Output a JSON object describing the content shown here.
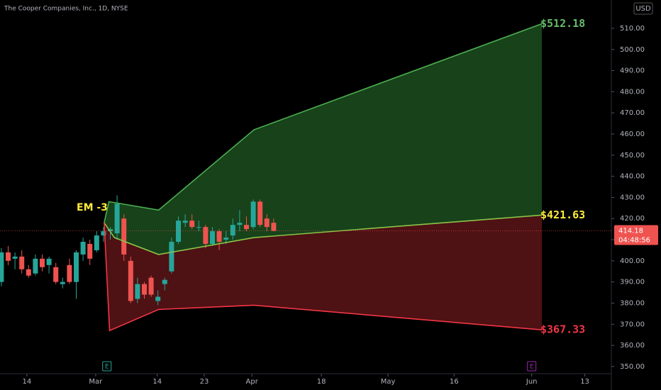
{
  "chart_data": {
    "type": "candlestick",
    "title": "The Cooper Companies, Inc., 1D, NYSE",
    "currency": "USD",
    "xlim": [
      -0.2,
      89.6
    ],
    "ylim": [
      346.6,
      523.4
    ],
    "xticks": [
      {
        "value": 3.75,
        "label": "14"
      },
      {
        "value": 13.85,
        "label": "Mar"
      },
      {
        "value": 22.9,
        "label": "14"
      },
      {
        "value": 29.8,
        "label": "23"
      },
      {
        "value": 36.8,
        "label": "Apr"
      },
      {
        "value": 47,
        "label": "18"
      },
      {
        "value": 56.8,
        "label": "May"
      },
      {
        "value": 66.5,
        "label": "16"
      },
      {
        "value": 77.9,
        "label": "Jun"
      },
      {
        "value": 85.7,
        "label": "13"
      }
    ],
    "yticks": [
      {
        "value": 350,
        "label": "350.00"
      },
      {
        "value": 360,
        "label": "360.00"
      },
      {
        "value": 370,
        "label": "370.00"
      },
      {
        "value": 380,
        "label": "380.00"
      },
      {
        "value": 390,
        "label": "390.00"
      },
      {
        "value": 400,
        "label": "400.00"
      },
      {
        "value": 410,
        "label": "410.00"
      },
      {
        "value": 420,
        "label": "420.00"
      },
      {
        "value": 430,
        "label": "430.00"
      },
      {
        "value": 440,
        "label": "440.00"
      },
      {
        "value": 450,
        "label": "450.00"
      },
      {
        "value": 460,
        "label": "460.00"
      },
      {
        "value": 470,
        "label": "470.00"
      },
      {
        "value": 480,
        "label": "480.00"
      },
      {
        "value": 490,
        "label": "490.00"
      },
      {
        "value": 500,
        "label": "500.00"
      },
      {
        "value": 510,
        "label": "510.00"
      }
    ],
    "up_color": "#26a69a",
    "down_color": "#ef5350",
    "candles": {
      "x": [
        0,
        1,
        2,
        3,
        4,
        5,
        6,
        7,
        8,
        9,
        10,
        11,
        12,
        13,
        14,
        15,
        16,
        17,
        18,
        19,
        20,
        21,
        22,
        23,
        24,
        25,
        26,
        27,
        28,
        29,
        30,
        31,
        32,
        33,
        34,
        35,
        36,
        37,
        38,
        39,
        40
      ],
      "open": [
        390,
        404,
        401,
        402,
        396,
        394,
        401,
        398,
        397,
        389,
        398,
        390,
        403,
        408,
        405,
        412,
        414,
        413,
        420,
        400,
        382,
        389,
        392,
        381,
        389,
        395,
        409,
        418,
        419,
        416,
        416,
        408,
        414,
        410,
        412,
        417,
        417,
        416,
        428,
        420,
        418
      ],
      "high": [
        406,
        407,
        404,
        405,
        398,
        403,
        403,
        402,
        399,
        392,
        401,
        405,
        411,
        410,
        414,
        416,
        416,
        431,
        422,
        402,
        392,
        390,
        393,
        386,
        392,
        411,
        421,
        422,
        422,
        419,
        417,
        416,
        415,
        414,
        420,
        424,
        421,
        429,
        429,
        422,
        420
      ],
      "low": [
        388,
        398,
        396,
        394,
        392,
        393,
        395,
        394,
        389,
        387,
        389,
        382,
        400,
        398,
        404,
        409,
        410,
        410,
        400,
        380,
        380,
        382,
        383,
        379,
        386,
        394,
        408,
        416,
        415,
        414,
        406,
        407,
        405,
        408,
        410,
        414,
        414,
        415,
        416,
        414,
        414
      ],
      "close": [
        404,
        400,
        402,
        396,
        393,
        401,
        397,
        401,
        390,
        390,
        390,
        404,
        409,
        401,
        412,
        414,
        415,
        427,
        403,
        381,
        389,
        384,
        384,
        383,
        391,
        409,
        419,
        419,
        416,
        416,
        408,
        414,
        409,
        411,
        417,
        418,
        415,
        428,
        417,
        416,
        414.18
      ]
    },
    "series": [
      {
        "color": "#4caf50",
        "x": [
          15.1,
          15.8,
          23.1,
          37.1,
          79.4
        ],
        "values": [
          418,
          428,
          424,
          462,
          512.18
        ]
      },
      {
        "color": "#8bc34a",
        "x": [
          15.1,
          16.6,
          23.1,
          37.1,
          79.4
        ],
        "values": [
          418,
          411,
          403,
          411,
          421.63
        ]
      },
      {
        "color": "#f23645",
        "x": [
          15.1,
          15.9,
          23.1,
          37.1,
          79.4
        ],
        "values": [
          418,
          367,
          377,
          379,
          367.33
        ]
      }
    ],
    "band_fills": [
      "#1b4d1f",
      "#5c1418"
    ],
    "annotations": [
      {
        "text": "$512.18",
        "value": 512.18,
        "color": "#66bb6a"
      },
      {
        "text": "$421.63",
        "value": 421.63,
        "color": "#ffeb3b"
      },
      {
        "text": "$367.33",
        "value": 367.33,
        "color": "#f23645"
      }
    ],
    "em_label": {
      "text": "EM -3",
      "value": 421,
      "color": "#ffeb3b"
    },
    "last_price": 414.18,
    "countdown": "04:48:56",
    "events": [
      {
        "x": 15.5,
        "label": "E",
        "color": "#26a69a"
      },
      {
        "x": 77.9,
        "label": "E",
        "color": "#9c27b0"
      }
    ]
  }
}
